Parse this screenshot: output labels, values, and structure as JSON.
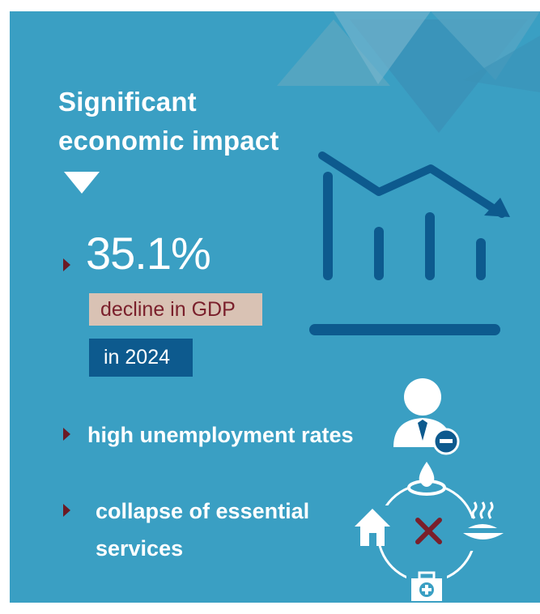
{
  "heading": {
    "line1": "Significant",
    "line2": "economic impact"
  },
  "stats": {
    "gdp_value": "35.1%",
    "gdp_label": "decline in GDP",
    "year_label": "in 2024"
  },
  "points": [
    {
      "text": "high unemployment rates"
    },
    {
      "text_line1": "collapse of essential",
      "text_line2": "services"
    }
  ],
  "icons": {
    "chart": "declining-bar-chart-icon",
    "person": "person-minus-icon",
    "services": "essential-services-cycle-icon"
  },
  "colors": {
    "background": "#3a9fc3",
    "dark_blue": "#0d5a8e",
    "accent_dark_red": "#6b1a24",
    "gdp_tag": "#d9c2b4",
    "cross_red": "#7a1f2b"
  }
}
